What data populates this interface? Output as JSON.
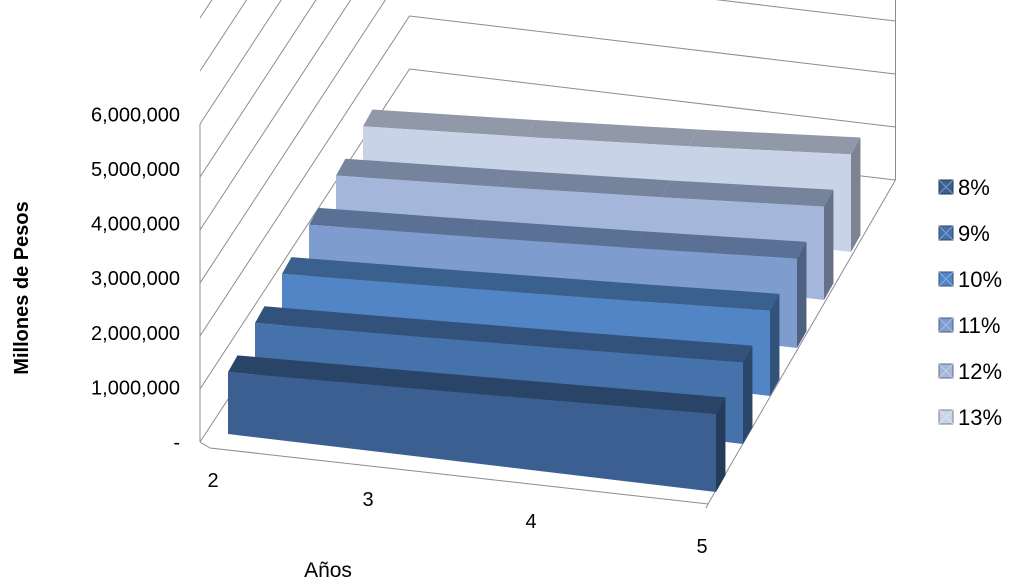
{
  "chart_data": {
    "type": "area",
    "view": "3d",
    "title": "",
    "xlabel": "Años",
    "ylabel": "Millones de Pesos",
    "categories": [
      "2",
      "3",
      "4",
      "5"
    ],
    "y_ticks": [
      "-",
      "1,000,000",
      "2,000,000",
      "3,000,000",
      "4,000,000",
      "5,000,000",
      "6,000,000"
    ],
    "ylim": [
      0,
      6000000
    ],
    "grid": true,
    "legend_position": "right",
    "series": [
      {
        "name": "8%",
        "values": [
          1166400,
          1259712,
          1360489,
          1469328
        ],
        "color": "#3b5f91"
      },
      {
        "name": "9%",
        "values": [
          1188100,
          1295029,
          1411582,
          1538624
        ],
        "color": "#4672ab"
      },
      {
        "name": "10%",
        "values": [
          1210000,
          1331000,
          1464100,
          1610510
        ],
        "color": "#5185c5"
      },
      {
        "name": "11%",
        "values": [
          1232100,
          1367631,
          1518070,
          1685058
        ],
        "color": "#7f9ccf"
      },
      {
        "name": "12%",
        "values": [
          1254400,
          1404928,
          1573519,
          1762342
        ],
        "color": "#a4b6da"
      },
      {
        "name": "13%",
        "values": [
          1276900,
          1442897,
          1630474,
          1842435
        ],
        "color": "#c9d3e8"
      }
    ]
  }
}
